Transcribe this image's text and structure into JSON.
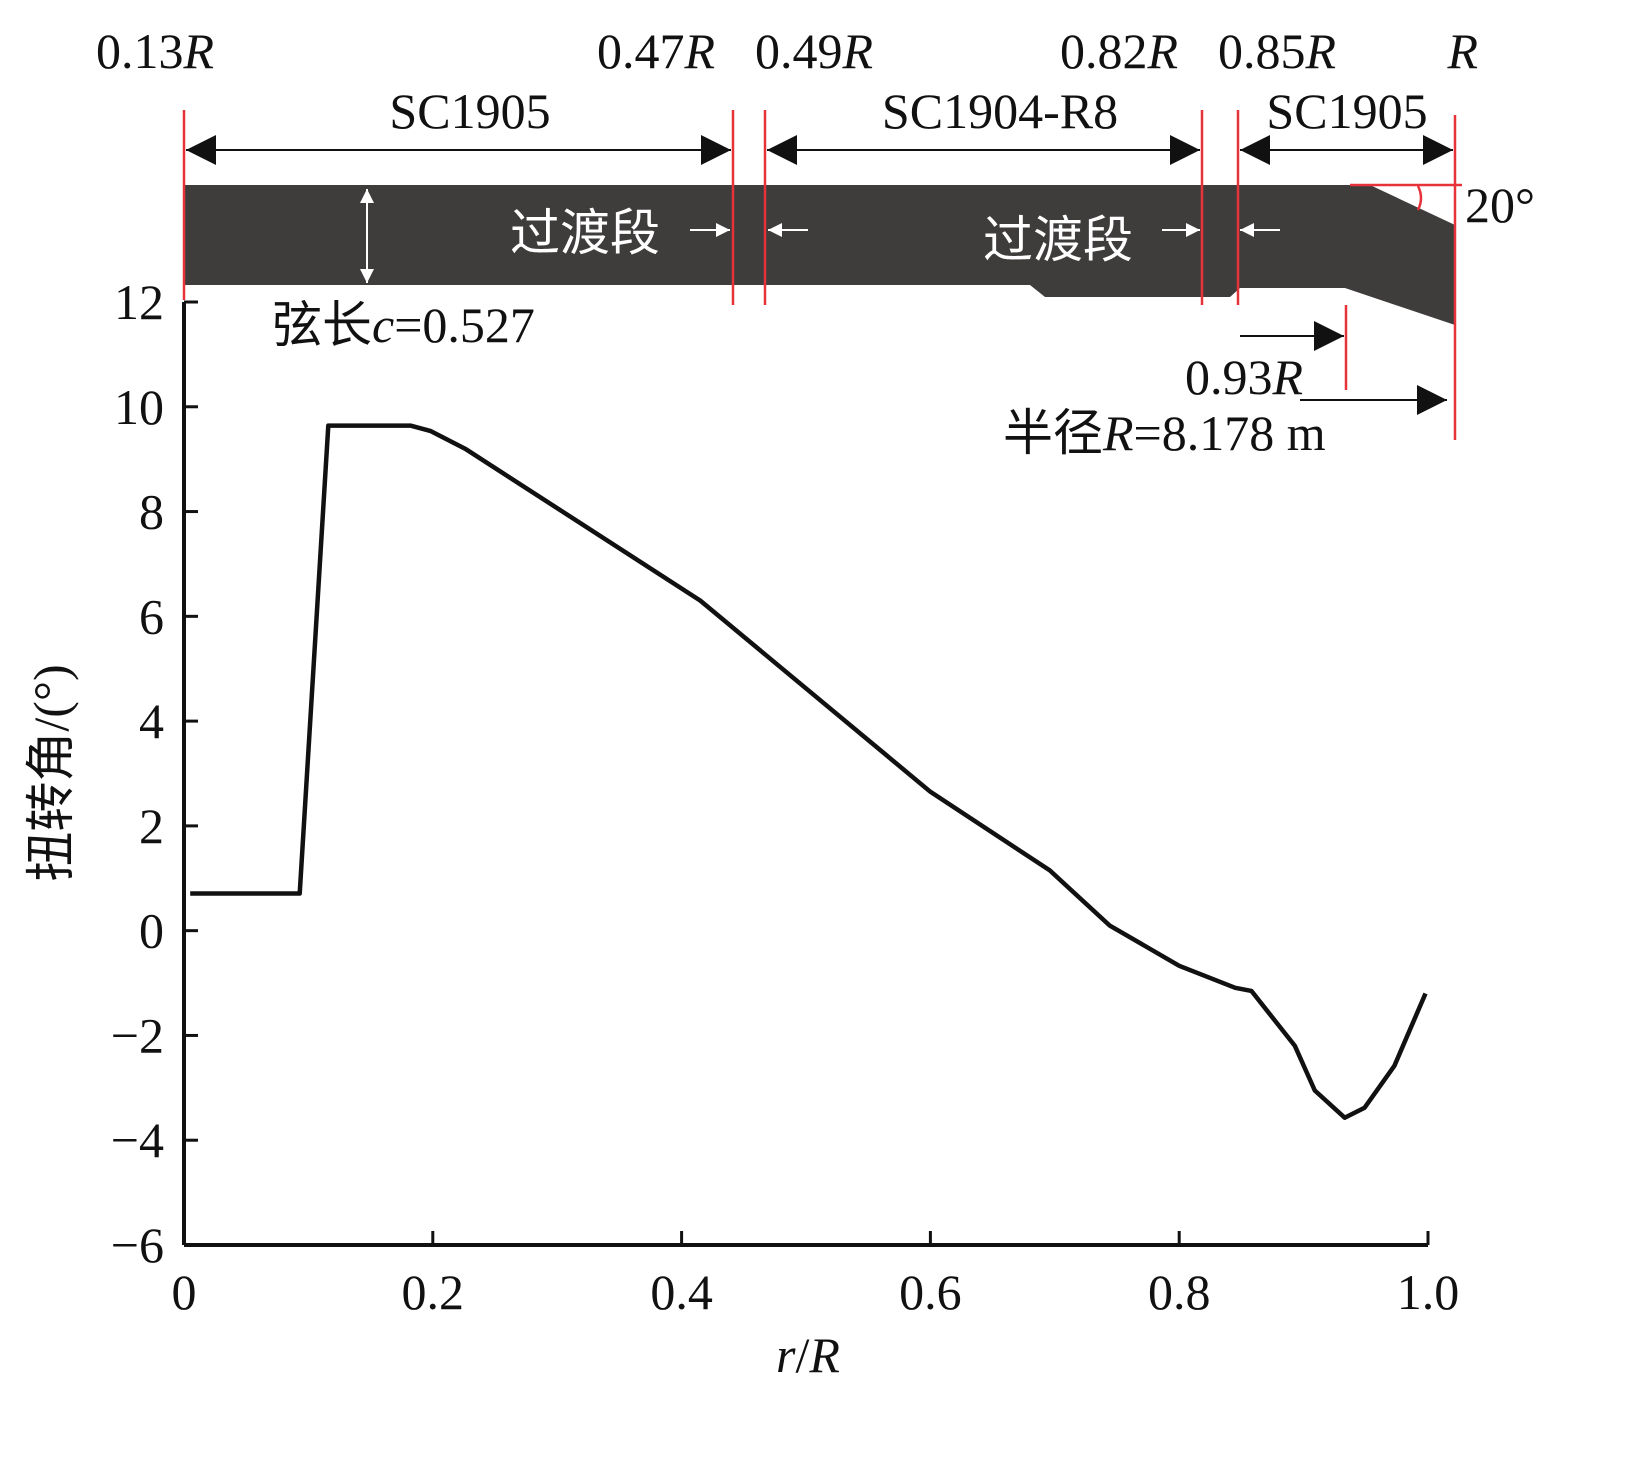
{
  "chart_data": {
    "type": "line",
    "xlabel": {
      "var1": "r",
      "sep": "/",
      "var2": "R"
    },
    "ylabel": "扭转角/(°)",
    "xlim": [
      0,
      1.0
    ],
    "ylim": [
      -6,
      12
    ],
    "xticks": [
      "0",
      "0.2",
      "0.4",
      "0.6",
      "0.8",
      "1.0"
    ],
    "xtick_values": [
      0,
      0.2,
      0.4,
      0.6,
      0.8,
      1.0
    ],
    "yticks": [
      "12",
      "10",
      "8",
      "6",
      "4",
      "2",
      "0",
      "−2",
      "−4",
      "−6"
    ],
    "ytick_values": [
      12,
      10,
      8,
      6,
      4,
      2,
      0,
      -2,
      -4,
      -6
    ],
    "grid": false,
    "series": [
      {
        "name": "twist angle",
        "color": "#111111",
        "x": [
          0.005,
          0.093,
          0.116,
          0.182,
          0.198,
          0.226,
          0.415,
          0.6,
          0.696,
          0.744,
          0.8,
          0.845,
          0.858,
          0.893,
          0.909,
          0.933,
          0.949,
          0.973,
          0.998
        ],
        "y": [
          0.71,
          0.71,
          9.64,
          9.64,
          9.54,
          9.2,
          6.3,
          2.65,
          1.15,
          0.1,
          -0.67,
          -1.09,
          -1.15,
          -2.2,
          -3.05,
          -3.57,
          -3.38,
          -2.58,
          -1.2
        ]
      }
    ],
    "annotations": {
      "positions": [
        {
          "num": "0.13",
          "var": "R"
        },
        {
          "num": "0.47",
          "var": "R"
        },
        {
          "num": "0.49",
          "var": "R"
        },
        {
          "num": "0.82",
          "var": "R"
        },
        {
          "num": "0.85",
          "var": "R"
        },
        {
          "num": "",
          "var": "R"
        }
      ],
      "airfoils": [
        "SC1905",
        "SC1904-R8",
        "SC1905"
      ],
      "transition_1": "过渡段",
      "transition_2": "过渡段",
      "angle": "20°",
      "chord": {
        "prefix": "弦长",
        "var": "c",
        "value": "=0.527"
      },
      "tip_start": {
        "num": "0.93",
        "var": "R"
      },
      "radius": {
        "prefix": "半径",
        "var": "R",
        "value": "=8.178 m"
      }
    },
    "colors": {
      "blade": "#3f3c3c",
      "marker_line": "#e8323a",
      "text": "#111111"
    }
  }
}
